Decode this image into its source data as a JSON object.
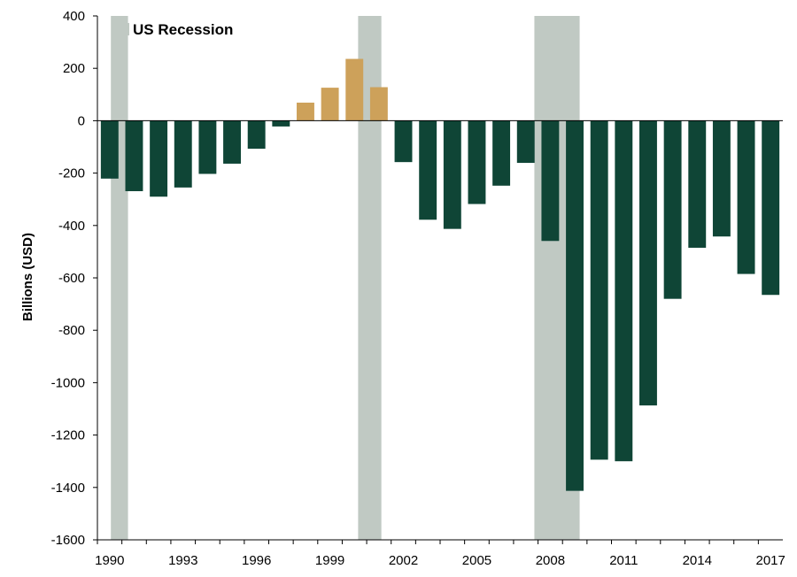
{
  "chart_data": {
    "type": "bar",
    "title": "",
    "xlabel": "",
    "ylabel": "Billions (USD)",
    "ylim": [
      -1600,
      400
    ],
    "y_ticks": [
      400,
      200,
      0,
      -200,
      -400,
      -600,
      -800,
      -1000,
      -1200,
      -1400,
      -1600
    ],
    "x_tick_labels": [
      "1990",
      "1993",
      "1996",
      "1999",
      "2002",
      "2005",
      "2008",
      "2011",
      "2014",
      "2017"
    ],
    "grid": false,
    "legend": {
      "placement": "top-left",
      "entries": [
        {
          "label": "US Recession",
          "color": "#c0c9c3"
        }
      ]
    },
    "categories": [
      1990,
      1991,
      1992,
      1993,
      1994,
      1995,
      1996,
      1997,
      1998,
      1999,
      2000,
      2001,
      2002,
      2003,
      2004,
      2005,
      2006,
      2007,
      2008,
      2009,
      2010,
      2011,
      2012,
      2013,
      2014,
      2015,
      2016,
      2017
    ],
    "values": [
      -221,
      -269,
      -290,
      -255,
      -203,
      -164,
      -107,
      -22,
      69,
      126,
      236,
      128,
      -158,
      -378,
      -413,
      -318,
      -248,
      -161,
      -459,
      -1413,
      -1294,
      -1300,
      -1087,
      -680,
      -485,
      -442,
      -585,
      -665
    ],
    "colors": {
      "deficit": "#0f4536",
      "surplus": "#cda15a",
      "recession": "#c0c9c3",
      "axis": "#000000"
    },
    "recession_periods": [
      {
        "start": 1990.55,
        "end": 1991.25
      },
      {
        "start": 2000.65,
        "end": 2001.6
      },
      {
        "start": 2007.85,
        "end": 2009.7
      }
    ]
  }
}
